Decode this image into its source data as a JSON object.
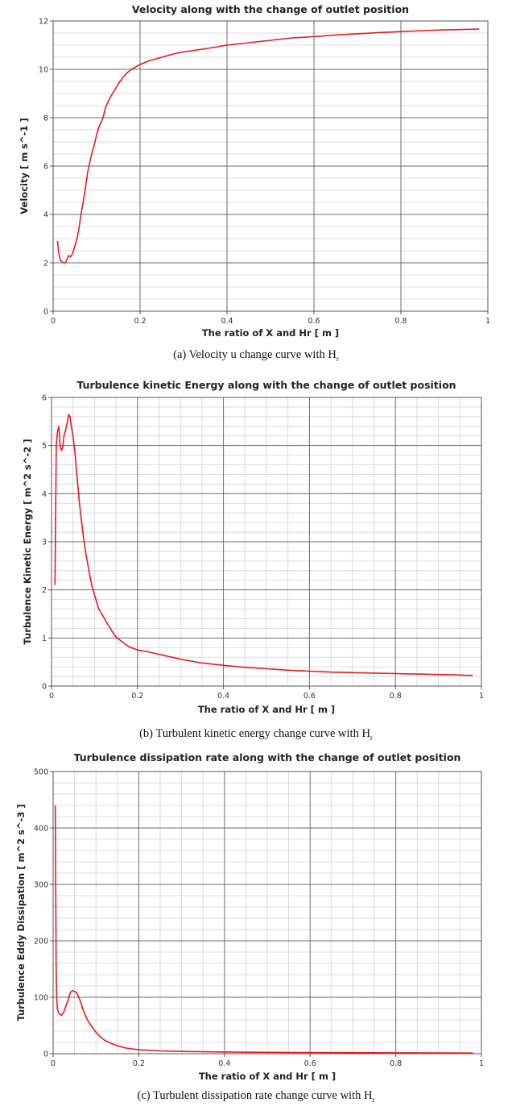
{
  "colors": {
    "curve": "#e8191e",
    "major_grid": "#6e6e6e",
    "minor_grid": "#d2d2d2",
    "frame": "#555555"
  },
  "chart_data": [
    {
      "type": "line",
      "title": "Velocity along with the change of outlet position",
      "xlabel": "The ratio of X and Hr [ m ]",
      "ylabel": "Velocity [ m s^-1 ]",
      "xlim": [
        0,
        1
      ],
      "ylim": [
        0,
        12
      ],
      "xticks": [
        "0",
        "0.2",
        "0.4",
        "0.6",
        "0.8",
        "1"
      ],
      "yticks": [
        "0",
        "2",
        "4",
        "6",
        "8",
        "10",
        "12"
      ],
      "series": [
        {
          "name": "Velocity",
          "x": [
            0.01,
            0.013,
            0.016,
            0.02,
            0.024,
            0.028,
            0.032,
            0.036,
            0.04,
            0.045,
            0.05,
            0.055,
            0.06,
            0.065,
            0.07,
            0.075,
            0.08,
            0.085,
            0.09,
            0.095,
            0.1,
            0.105,
            0.11,
            0.115,
            0.12,
            0.13,
            0.14,
            0.15,
            0.16,
            0.17,
            0.18,
            0.19,
            0.2,
            0.22,
            0.24,
            0.26,
            0.28,
            0.3,
            0.35,
            0.4,
            0.45,
            0.5,
            0.55,
            0.6,
            0.65,
            0.7,
            0.75,
            0.8,
            0.85,
            0.9,
            0.95,
            0.98
          ],
          "y": [
            2.9,
            2.4,
            2.15,
            2.05,
            2.0,
            2.0,
            2.15,
            2.3,
            2.25,
            2.4,
            2.7,
            3.0,
            3.5,
            4.1,
            4.6,
            5.2,
            5.8,
            6.2,
            6.6,
            6.9,
            7.3,
            7.6,
            7.8,
            8.0,
            8.4,
            8.8,
            9.1,
            9.4,
            9.65,
            9.85,
            10.0,
            10.1,
            10.2,
            10.35,
            10.45,
            10.55,
            10.65,
            10.72,
            10.85,
            11.0,
            11.1,
            11.2,
            11.3,
            11.35,
            11.42,
            11.47,
            11.52,
            11.56,
            11.6,
            11.63,
            11.65,
            11.67
          ]
        }
      ],
      "caption": {
        "text": "(a) Velocity u change curve with H",
        "sub": "r"
      }
    },
    {
      "type": "line",
      "title": "Turbulence kinetic Energy along with the change of outlet position",
      "xlabel": "The ratio of X and Hr [ m ]",
      "ylabel": "Turbulence Kinetic Energy [ m^2 s^-2 ]",
      "xlim": [
        0,
        1
      ],
      "ylim": [
        0,
        6
      ],
      "xticks": [
        "0",
        "0.2",
        "0.4",
        "0.6",
        "0.8",
        "1"
      ],
      "yticks": [
        "0",
        "1",
        "2",
        "3",
        "4",
        "5",
        "6"
      ],
      "series": [
        {
          "name": "Turbulence kinetic energy",
          "x": [
            0.008,
            0.011,
            0.014,
            0.017,
            0.02,
            0.023,
            0.026,
            0.029,
            0.032,
            0.036,
            0.04,
            0.043,
            0.046,
            0.05,
            0.055,
            0.06,
            0.065,
            0.07,
            0.075,
            0.08,
            0.085,
            0.09,
            0.095,
            0.1,
            0.11,
            0.12,
            0.13,
            0.14,
            0.15,
            0.16,
            0.17,
            0.18,
            0.2,
            0.22,
            0.24,
            0.26,
            0.28,
            0.3,
            0.35,
            0.4,
            0.45,
            0.5,
            0.55,
            0.6,
            0.65,
            0.7,
            0.75,
            0.8,
            0.85,
            0.9,
            0.95,
            0.98
          ],
          "y": [
            2.1,
            5.0,
            5.3,
            5.4,
            5.0,
            4.9,
            4.95,
            5.2,
            5.3,
            5.45,
            5.65,
            5.6,
            5.4,
            5.2,
            4.8,
            4.3,
            3.8,
            3.4,
            3.05,
            2.75,
            2.5,
            2.25,
            2.05,
            1.9,
            1.6,
            1.45,
            1.3,
            1.15,
            1.02,
            0.95,
            0.88,
            0.82,
            0.75,
            0.72,
            0.68,
            0.64,
            0.6,
            0.56,
            0.48,
            0.43,
            0.39,
            0.36,
            0.33,
            0.31,
            0.29,
            0.28,
            0.27,
            0.26,
            0.25,
            0.24,
            0.23,
            0.22
          ]
        }
      ],
      "caption": {
        "text": "(b)  Turbulent kinetic energy change curve with H",
        "sub": "r"
      }
    },
    {
      "type": "line",
      "title": "Turbulence dissipation rate along with the change of outlet position",
      "xlabel": "The ratio of X and Hr [ m ]",
      "ylabel": "Turbulence Eddy Dissipation [ m^2 s^-3 ]",
      "xlim": [
        0,
        1
      ],
      "ylim": [
        0,
        500
      ],
      "xticks": [
        "0",
        "0.2",
        "0.4",
        "0.6",
        "0.8",
        "1"
      ],
      "yticks": [
        "0",
        "100",
        "200",
        "300",
        "400",
        "500"
      ],
      "series": [
        {
          "name": "Turbulence eddy dissipation",
          "x": [
            0.005,
            0.006,
            0.007,
            0.008,
            0.009,
            0.01,
            0.012,
            0.015,
            0.02,
            0.025,
            0.03,
            0.035,
            0.04,
            0.045,
            0.05,
            0.055,
            0.06,
            0.065,
            0.07,
            0.075,
            0.08,
            0.09,
            0.1,
            0.11,
            0.12,
            0.13,
            0.14,
            0.15,
            0.17,
            0.2,
            0.25,
            0.3,
            0.4,
            0.5,
            0.6,
            0.7,
            0.8,
            0.9,
            0.98
          ],
          "y": [
            440,
            300,
            160,
            110,
            90,
            80,
            74,
            70,
            68,
            74,
            85,
            95,
            108,
            112,
            110,
            108,
            100,
            90,
            78,
            68,
            60,
            48,
            38,
            30,
            24,
            20,
            17,
            14,
            10,
            7,
            5,
            4,
            3,
            2.5,
            2,
            1.8,
            1.5,
            1.3,
            1.2
          ]
        }
      ],
      "caption": {
        "text": "(c) Turbulent dissipation rate change curve with H",
        "sub": "r"
      }
    }
  ]
}
